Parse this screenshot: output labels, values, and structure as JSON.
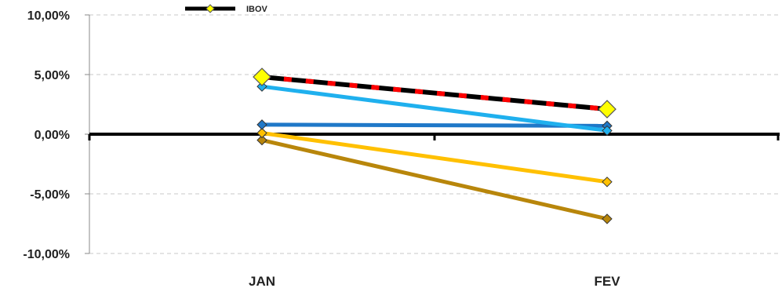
{
  "chart_data": {
    "type": "line",
    "title": "",
    "xlabel": "",
    "ylabel": "",
    "categories": [
      "JAN",
      "FEV"
    ],
    "ylim": [
      -10,
      10
    ],
    "yticks": [
      10,
      5,
      0,
      -5,
      -10
    ],
    "ytick_labels": [
      "10,00%",
      "5,00%",
      "0,00%",
      "-5,00%",
      "-10,00%"
    ],
    "grid": true,
    "legend": {
      "placement": "top-left",
      "entries": [
        "IBOV"
      ]
    },
    "series": [
      {
        "name": "IBOV",
        "values": [
          4.8,
          2.1
        ],
        "color": "#000000",
        "accent": "#ff0000",
        "marker": "diamond-large",
        "marker_color": "#ffff00"
      },
      {
        "values": [
          4.0,
          0.3
        ],
        "color": "#1fb0ee",
        "marker": "diamond"
      },
      {
        "values": [
          0.8,
          0.7
        ],
        "color": "#1f78c8",
        "marker": "diamond"
      },
      {
        "values": [
          0.1,
          -4.0
        ],
        "color": "#ffc000",
        "marker": "diamond"
      },
      {
        "values": [
          -0.5,
          -7.1
        ],
        "color": "#b8860b",
        "marker": "diamond"
      }
    ]
  }
}
